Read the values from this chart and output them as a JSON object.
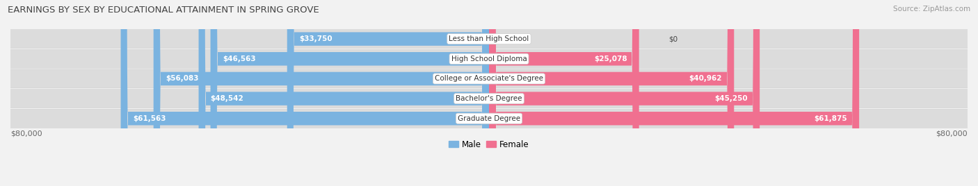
{
  "title": "EARNINGS BY SEX BY EDUCATIONAL ATTAINMENT IN SPRING GROVE",
  "source": "Source: ZipAtlas.com",
  "categories": [
    "Less than High School",
    "High School Diploma",
    "College or Associate's Degree",
    "Bachelor's Degree",
    "Graduate Degree"
  ],
  "male_values": [
    33750,
    46563,
    56083,
    48542,
    61563
  ],
  "female_values": [
    0,
    25078,
    40962,
    45250,
    61875
  ],
  "male_color": "#7ab3e0",
  "female_color": "#f07090",
  "axis_max": 80000,
  "background_color": "#f2f2f2",
  "row_bg_light": "#e8e8e8",
  "row_bg_dark": "#d8d8d8",
  "title_fontsize": 9.5,
  "source_fontsize": 7.5,
  "value_fontsize": 7.5,
  "cat_fontsize": 7.5,
  "axis_label": "$80,000",
  "legend_male": "Male",
  "legend_female": "Female"
}
